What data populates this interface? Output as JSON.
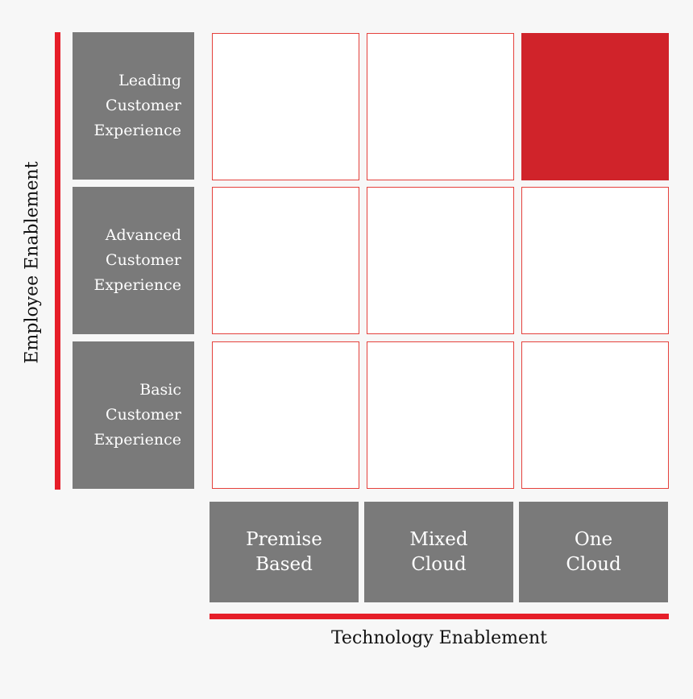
{
  "diagram": {
    "y_axis_title": "Employee Enablement",
    "x_axis_title": "Technology Enablement",
    "rows": [
      {
        "lines": [
          "Leading",
          "Customer",
          "Experience"
        ]
      },
      {
        "lines": [
          "Advanced",
          "Customer",
          "Experience"
        ]
      },
      {
        "lines": [
          "Basic",
          "Customer",
          "Experience"
        ]
      }
    ],
    "columns": [
      {
        "lines": [
          "Premise",
          "Based"
        ]
      },
      {
        "lines": [
          "Mixed",
          "Cloud"
        ]
      },
      {
        "lines": [
          "One",
          "Cloud"
        ]
      }
    ],
    "highlighted_cell": {
      "row": "Leading Customer Experience",
      "column": "One Cloud"
    },
    "colors": {
      "accent": "#e61e29",
      "highlight": "#d0232a",
      "label_box": "#7a7a7a",
      "cell_border": "#e5413c"
    }
  }
}
